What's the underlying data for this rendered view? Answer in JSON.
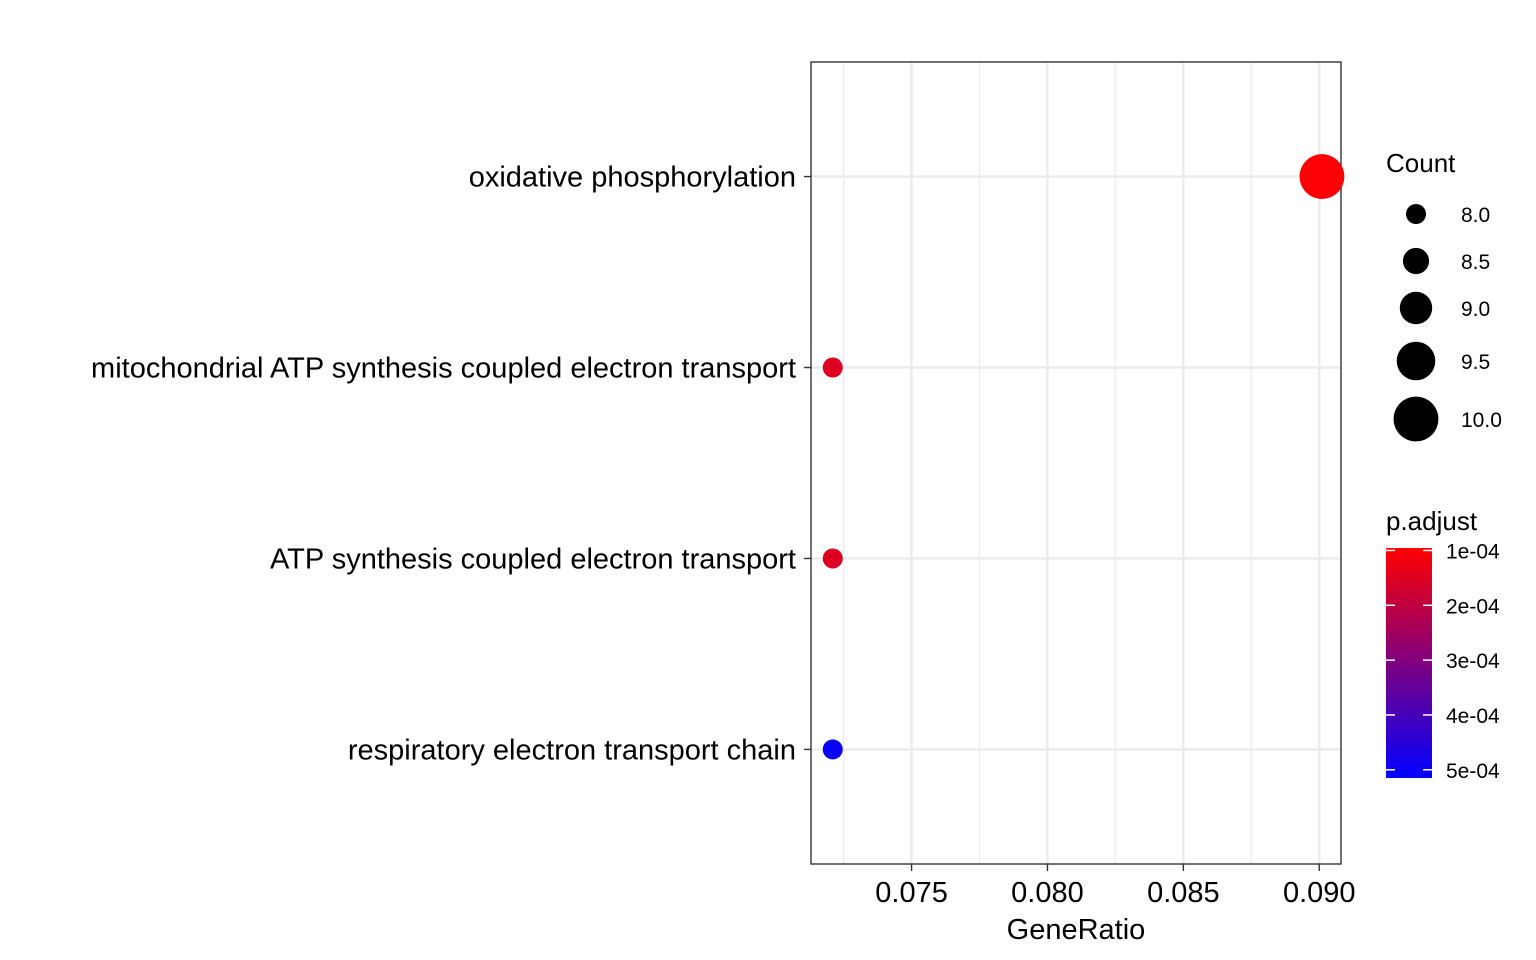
{
  "chart_data": {
    "type": "scatter",
    "title": "",
    "xlabel": "GeneRatio",
    "ylabel": "",
    "xlim": [
      0.0713,
      0.0908
    ],
    "x_ticks": [
      0.075,
      0.08,
      0.085,
      0.09
    ],
    "x_tick_labels": [
      "0.075",
      "0.080",
      "0.085",
      "0.090"
    ],
    "categories": [
      "oxidative phosphorylation",
      "mitochondrial ATP synthesis coupled electron transport",
      "ATP synthesis coupled electron transport",
      "respiratory electron transport chain"
    ],
    "points": [
      {
        "term": "oxidative phosphorylation",
        "x": 0.0901,
        "count": 10,
        "p_adjust": 0.0001
      },
      {
        "term": "mitochondrial ATP synthesis coupled electron transport",
        "x": 0.0721,
        "count": 8,
        "p_adjust": 0.00015
      },
      {
        "term": "ATP synthesis coupled electron transport",
        "x": 0.0721,
        "count": 8,
        "p_adjust": 0.00015
      },
      {
        "term": "respiratory electron transport chain",
        "x": 0.0721,
        "count": 8,
        "p_adjust": 0.0005
      }
    ],
    "grid": true,
    "legend_position": "right",
    "size_legend": {
      "title": "Count",
      "values": [
        8,
        8.5,
        9,
        9.5,
        10
      ],
      "labels": [
        "8.0",
        "8.5",
        "9.0",
        "9.5",
        "10.0"
      ]
    },
    "color_legend": {
      "title": "p.adjust",
      "low_color": "#ff0000",
      "high_color": "#0000ff",
      "range": [
        9.55e-05,
        0.000515
      ],
      "ticks": [
        0.0001,
        0.0002,
        0.0003,
        0.0004,
        0.0005
      ],
      "labels": [
        "1e-04",
        "2e-04",
        "3e-04",
        "4e-04",
        "5e-04"
      ]
    }
  }
}
